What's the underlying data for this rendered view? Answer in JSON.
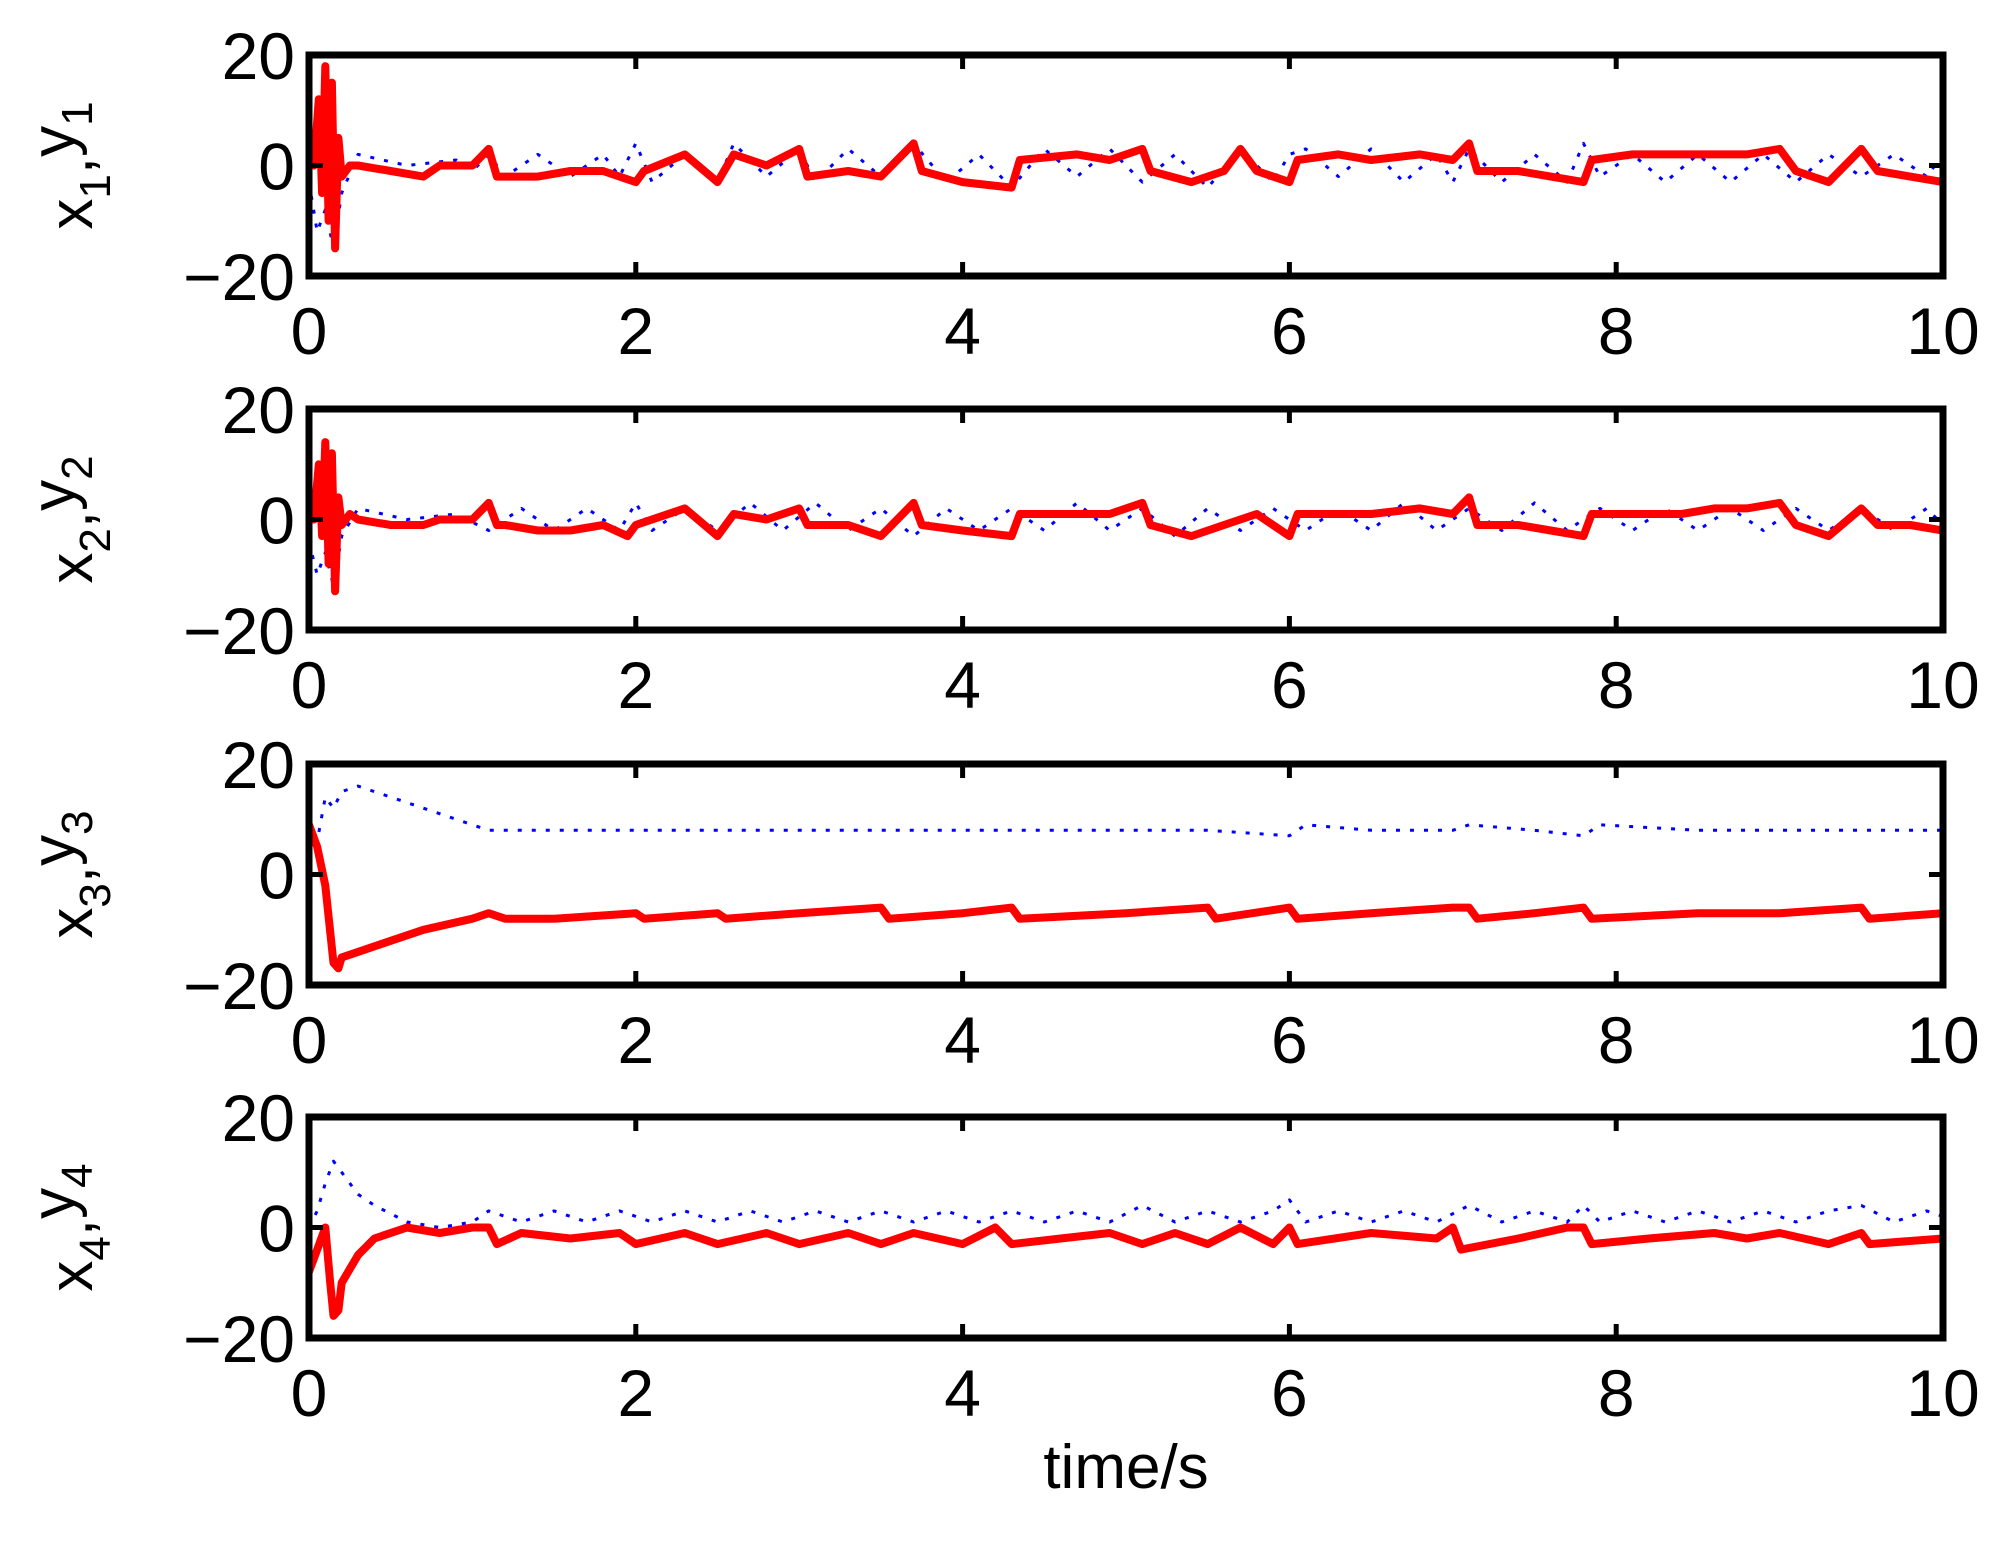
{
  "chart_data": [
    {
      "type": "line",
      "ylabel": {
        "a": "x",
        "a_sub": "1",
        "sep": ",",
        "b": "y",
        "b_sub": "1"
      },
      "xlabel": "",
      "xlim": [
        0,
        10
      ],
      "ylim": [
        -20,
        20
      ],
      "xticks": [
        "0",
        "2",
        "4",
        "6",
        "8",
        "10"
      ],
      "yticks": [
        "20",
        "0",
        "−20"
      ],
      "series": [
        {
          "style": "dotted",
          "color": "#0000ff",
          "x": [
            0.0,
            0.05,
            0.1,
            0.15,
            0.2,
            0.3,
            0.6,
            0.9,
            1.0,
            1.1,
            1.2,
            1.4,
            1.6,
            1.8,
            1.9,
            2.0,
            2.1,
            2.3,
            2.5,
            2.6,
            2.8,
            3.0,
            3.1,
            3.3,
            3.5,
            3.7,
            3.9,
            4.1,
            4.3,
            4.5,
            4.7,
            4.9,
            5.1,
            5.3,
            5.5,
            5.7,
            5.9,
            6.0,
            6.1,
            6.3,
            6.5,
            6.7,
            6.9,
            7.0,
            7.1,
            7.3,
            7.5,
            7.7,
            7.8,
            7.9,
            8.1,
            8.3,
            8.5,
            8.7,
            8.9,
            9.1,
            9.3,
            9.5,
            9.7,
            9.9,
            10.0
          ],
          "y": [
            -3,
            -12,
            -8,
            -15,
            -5,
            2,
            0,
            1,
            -1,
            2,
            -2,
            2,
            -2,
            2,
            -2,
            4,
            -3,
            2,
            -3,
            4,
            -2,
            3,
            -3,
            3,
            -2,
            4,
            -3,
            2,
            -4,
            3,
            -2,
            3,
            -3,
            2,
            -4,
            3,
            -3,
            2,
            3,
            -2,
            3,
            -3,
            2,
            -3,
            3,
            -3,
            2,
            -3,
            4,
            -2,
            2,
            -3,
            2,
            -3,
            2,
            -3,
            2,
            -2,
            2,
            -2,
            2
          ]
        },
        {
          "style": "solid",
          "color": "#ff0000",
          "x": [
            0.0,
            0.03,
            0.06,
            0.08,
            0.1,
            0.12,
            0.14,
            0.16,
            0.18,
            0.2,
            0.25,
            0.3,
            0.5,
            0.7,
            0.8,
            1.0,
            1.1,
            1.15,
            1.2,
            1.4,
            1.6,
            1.8,
            2.0,
            2.05,
            2.3,
            2.5,
            2.6,
            2.8,
            3.0,
            3.05,
            3.3,
            3.5,
            3.7,
            3.75,
            4.0,
            4.3,
            4.35,
            4.7,
            4.9,
            5.1,
            5.15,
            5.4,
            5.6,
            5.7,
            5.8,
            6.0,
            6.05,
            6.3,
            6.5,
            6.8,
            7.0,
            7.1,
            7.15,
            7.4,
            7.6,
            7.8,
            7.85,
            8.1,
            8.4,
            8.6,
            8.8,
            9.0,
            9.1,
            9.3,
            9.5,
            9.6,
            9.8,
            10.0
          ],
          "y": [
            3,
            0,
            12,
            -5,
            18,
            -10,
            15,
            -15,
            5,
            -2,
            0,
            0,
            -1,
            -2,
            0,
            0,
            3,
            -2,
            -2,
            -2,
            -1,
            -1,
            -3,
            -1,
            2,
            -3,
            2,
            0,
            3,
            -2,
            -1,
            -2,
            4,
            -1,
            -3,
            -4,
            1,
            2,
            1,
            3,
            -1,
            -3,
            -1,
            3,
            -1,
            -3,
            1,
            2,
            1,
            2,
            1,
            4,
            -1,
            -1,
            -2,
            -3,
            1,
            2,
            2,
            2,
            2,
            3,
            -1,
            -3,
            3,
            -1,
            -2,
            -3
          ]
        }
      ]
    },
    {
      "type": "line",
      "ylabel": {
        "a": "x",
        "a_sub": "2",
        "sep": ",",
        "b": "y",
        "b_sub": "2"
      },
      "xlabel": "",
      "xlim": [
        0,
        10
      ],
      "ylim": [
        -20,
        20
      ],
      "xticks": [
        "0",
        "2",
        "4",
        "6",
        "8",
        "10"
      ],
      "yticks": [
        "20",
        "0",
        "−20"
      ],
      "series": [
        {
          "style": "dotted",
          "color": "#0000ff",
          "x": [
            0.0,
            0.05,
            0.1,
            0.15,
            0.2,
            0.3,
            0.6,
            0.9,
            1.1,
            1.3,
            1.5,
            1.7,
            1.9,
            2.0,
            2.1,
            2.3,
            2.5,
            2.7,
            2.9,
            3.1,
            3.3,
            3.5,
            3.7,
            3.9,
            4.1,
            4.3,
            4.5,
            4.7,
            4.9,
            5.1,
            5.3,
            5.5,
            5.7,
            5.9,
            6.1,
            6.3,
            6.5,
            6.7,
            6.9,
            7.1,
            7.3,
            7.5,
            7.7,
            7.9,
            8.1,
            8.3,
            8.5,
            8.7,
            8.9,
            9.1,
            9.3,
            9.5,
            9.7,
            9.9,
            10.0
          ],
          "y": [
            -4,
            -10,
            -6,
            -12,
            -3,
            2,
            0,
            1,
            -2,
            2,
            -2,
            2,
            -2,
            3,
            -2,
            2,
            -2,
            3,
            -2,
            3,
            -2,
            2,
            -3,
            2,
            -2,
            2,
            -2,
            3,
            -2,
            2,
            -3,
            2,
            -2,
            2,
            -2,
            2,
            -2,
            3,
            -2,
            2,
            -2,
            3,
            -2,
            2,
            -2,
            2,
            -2,
            2,
            -2,
            2,
            -2,
            2,
            -2,
            2,
            -1
          ]
        },
        {
          "style": "solid",
          "color": "#ff0000",
          "x": [
            0.0,
            0.03,
            0.06,
            0.08,
            0.1,
            0.12,
            0.14,
            0.16,
            0.18,
            0.2,
            0.25,
            0.3,
            0.5,
            0.7,
            0.8,
            1.0,
            1.1,
            1.15,
            1.2,
            1.4,
            1.6,
            1.8,
            1.95,
            2.0,
            2.3,
            2.5,
            2.6,
            2.8,
            3.0,
            3.05,
            3.3,
            3.5,
            3.7,
            3.75,
            4.0,
            4.3,
            4.35,
            4.7,
            4.9,
            5.1,
            5.15,
            5.4,
            5.6,
            5.8,
            6.0,
            6.05,
            6.3,
            6.5,
            6.8,
            7.0,
            7.1,
            7.15,
            7.4,
            7.6,
            7.8,
            7.85,
            8.1,
            8.4,
            8.6,
            8.8,
            9.0,
            9.1,
            9.3,
            9.5,
            9.6,
            9.8,
            10.0
          ],
          "y": [
            2,
            0,
            10,
            -3,
            14,
            -8,
            12,
            -13,
            4,
            -1,
            1,
            0,
            -1,
            -1,
            0,
            0,
            3,
            -1,
            -1,
            -2,
            -2,
            -1,
            -3,
            -1,
            2,
            -3,
            1,
            0,
            2,
            -1,
            -1,
            -3,
            3,
            -1,
            -2,
            -3,
            1,
            1,
            1,
            3,
            -1,
            -3,
            -1,
            1,
            -3,
            1,
            1,
            1,
            2,
            1,
            4,
            -1,
            -1,
            -2,
            -3,
            1,
            1,
            1,
            2,
            2,
            3,
            -1,
            -3,
            2,
            -1,
            -1,
            -2
          ]
        }
      ]
    },
    {
      "type": "line",
      "ylabel": {
        "a": "x",
        "a_sub": "3",
        "sep": ",",
        "b": "y",
        "b_sub": "3"
      },
      "xlabel": "",
      "xlim": [
        0,
        10
      ],
      "ylim": [
        -20,
        20
      ],
      "xticks": [
        "0",
        "2",
        "4",
        "6",
        "8",
        "10"
      ],
      "yticks": [
        "20",
        "0",
        "−20"
      ],
      "series": [
        {
          "style": "dotted",
          "color": "#0000ff",
          "x": [
            0.0,
            0.05,
            0.1,
            0.15,
            0.2,
            0.3,
            0.5,
            0.7,
            0.9,
            1.1,
            1.5,
            2.0,
            2.5,
            3.0,
            3.5,
            4.0,
            4.5,
            5.0,
            5.5,
            6.0,
            6.1,
            6.5,
            7.0,
            7.1,
            7.5,
            7.8,
            7.9,
            8.5,
            9.0,
            9.5,
            10.0
          ],
          "y": [
            3,
            6,
            14,
            12,
            15,
            16,
            14,
            12,
            10,
            8,
            8,
            8,
            8,
            8,
            8,
            8,
            8,
            8,
            8,
            7,
            9,
            8,
            8,
            9,
            8,
            7,
            9,
            8,
            8,
            8,
            8
          ]
        },
        {
          "style": "solid",
          "color": "#ff0000",
          "x": [
            0.0,
            0.05,
            0.1,
            0.15,
            0.18,
            0.2,
            0.3,
            0.5,
            0.7,
            1.0,
            1.1,
            1.2,
            1.5,
            2.0,
            2.05,
            2.5,
            2.55,
            3.0,
            3.5,
            3.55,
            4.0,
            4.3,
            4.35,
            5.0,
            5.5,
            5.55,
            6.0,
            6.05,
            6.5,
            7.0,
            7.1,
            7.15,
            7.5,
            7.8,
            7.85,
            8.5,
            9.0,
            9.5,
            9.55,
            10.0
          ],
          "y": [
            9,
            5,
            -2,
            -16,
            -17,
            -15,
            -14,
            -12,
            -10,
            -8,
            -7,
            -8,
            -8,
            -7,
            -8,
            -7,
            -8,
            -7,
            -6,
            -8,
            -7,
            -6,
            -8,
            -7,
            -6,
            -8,
            -6,
            -8,
            -7,
            -6,
            -6,
            -8,
            -7,
            -6,
            -8,
            -7,
            -7,
            -6,
            -8,
            -7
          ]
        }
      ]
    },
    {
      "type": "line",
      "ylabel": {
        "a": "x",
        "a_sub": "4",
        "sep": ",",
        "b": "y",
        "b_sub": "4"
      },
      "xlabel": "time/s",
      "xlim": [
        0,
        10
      ],
      "ylim": [
        -20,
        20
      ],
      "xticks": [
        "0",
        "2",
        "4",
        "6",
        "8",
        "10"
      ],
      "yticks": [
        "20",
        "0",
        "−20"
      ],
      "series": [
        {
          "style": "dotted",
          "color": "#0000ff",
          "x": [
            0.0,
            0.05,
            0.1,
            0.15,
            0.2,
            0.3,
            0.4,
            0.6,
            0.8,
            1.0,
            1.1,
            1.3,
            1.5,
            1.7,
            1.9,
            2.1,
            2.3,
            2.5,
            2.7,
            2.9,
            3.1,
            3.3,
            3.5,
            3.7,
            3.9,
            4.1,
            4.3,
            4.5,
            4.7,
            4.9,
            5.1,
            5.3,
            5.5,
            5.7,
            5.9,
            6.0,
            6.1,
            6.3,
            6.5,
            6.7,
            6.9,
            7.1,
            7.3,
            7.5,
            7.7,
            7.8,
            7.9,
            8.1,
            8.3,
            8.5,
            8.7,
            8.9,
            9.1,
            9.3,
            9.5,
            9.7,
            9.9,
            10.0
          ],
          "y": [
            0,
            3,
            8,
            12,
            10,
            6,
            4,
            1,
            0,
            1,
            3,
            1,
            3,
            1,
            3,
            1,
            3,
            1,
            3,
            1,
            3,
            1,
            3,
            1,
            3,
            1,
            3,
            1,
            3,
            1,
            4,
            1,
            3,
            1,
            3,
            5,
            1,
            3,
            1,
            3,
            1,
            4,
            1,
            3,
            1,
            4,
            1,
            3,
            1,
            3,
            1,
            3,
            1,
            3,
            4,
            1,
            3,
            2
          ]
        },
        {
          "style": "solid",
          "color": "#ff0000",
          "x": [
            0.0,
            0.05,
            0.1,
            0.13,
            0.15,
            0.18,
            0.2,
            0.3,
            0.4,
            0.6,
            0.8,
            1.0,
            1.1,
            1.15,
            1.3,
            1.6,
            1.9,
            2.0,
            2.3,
            2.5,
            2.8,
            3.0,
            3.3,
            3.5,
            3.7,
            4.0,
            4.2,
            4.3,
            4.6,
            4.9,
            5.1,
            5.3,
            5.5,
            5.7,
            5.9,
            6.0,
            6.05,
            6.5,
            6.9,
            7.0,
            7.05,
            7.4,
            7.7,
            7.8,
            7.85,
            8.2,
            8.6,
            8.8,
            9.0,
            9.3,
            9.5,
            9.55,
            10.0
          ],
          "y": [
            -8,
            -4,
            0,
            -10,
            -16,
            -15,
            -10,
            -5,
            -2,
            0,
            -1,
            0,
            0,
            -3,
            -1,
            -2,
            -1,
            -3,
            -1,
            -3,
            -1,
            -3,
            -1,
            -3,
            -1,
            -3,
            0,
            -3,
            -2,
            -1,
            -3,
            -1,
            -3,
            0,
            -3,
            0,
            -3,
            -1,
            -2,
            0,
            -4,
            -2,
            0,
            0,
            -3,
            -2,
            -1,
            -2,
            -1,
            -3,
            -1,
            -3,
            -2
          ]
        }
      ]
    }
  ]
}
